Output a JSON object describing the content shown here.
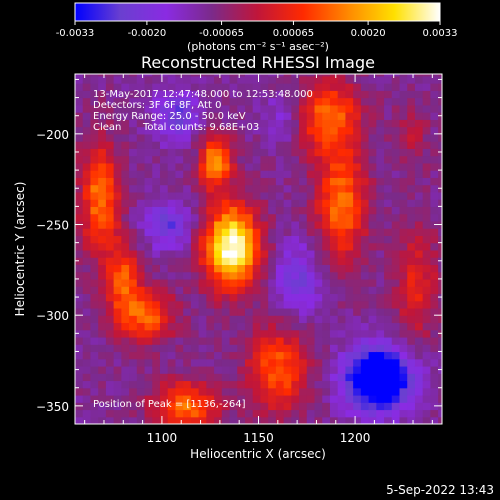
{
  "chart_data": {
    "type": "heatmap",
    "title": "Reconstructed RHESSI Image",
    "xlabel": "Heliocentric X (arcsec)",
    "ylabel": "Heliocentric Y (arcsec)",
    "xlim": [
      1055,
      1245
    ],
    "ylim": [
      -360,
      -167
    ],
    "x_ticks": [
      1100,
      1150,
      1200
    ],
    "y_ticks": [
      -200,
      -250,
      -300,
      -350
    ],
    "colorbar": {
      "min": -0.0033,
      "max": 0.0033,
      "ticks": [
        -0.0033,
        -0.002,
        -0.00065,
        0.00065,
        0.002,
        0.0033
      ],
      "tick_labels": [
        "-0.0033",
        "-0.0020",
        "-0.00065",
        "0.00065",
        "0.0020",
        "0.0033"
      ],
      "unit_label": "(photons cm⁻² s⁻¹ asec⁻²)",
      "colormap": [
        "#0000ff",
        "#6a3fd0",
        "#8a2be2",
        "#7b2a8a",
        "#c0163a",
        "#ff2a00",
        "#ff8a00",
        "#ffe000",
        "#ffffff"
      ]
    },
    "info_lines": [
      "13-May-2017 12:47:48.000 to 12:53:48.000",
      "Detectors: 3F 6F 8F, Att 0",
      "Energy Range: 25.0 - 50.0 keV",
      "Clean",
      "Total counts: 9.68E+03"
    ],
    "peak_label": "Position of Peak = [1136,-264]",
    "peak": [
      1136,
      -264
    ],
    "sources": [
      {
        "x": 1136,
        "y": -262,
        "sx": 10,
        "sy": 16,
        "amp": 1.9
      },
      {
        "x": 1128,
        "y": -215,
        "sx": 6,
        "sy": 10,
        "amp": 1.2
      },
      {
        "x": 1068,
        "y": -235,
        "sx": 7,
        "sy": 22,
        "amp": 1.05
      },
      {
        "x": 1092,
        "y": -300,
        "sx": 10,
        "sy": 10,
        "amp": 0.95
      },
      {
        "x": 1080,
        "y": -280,
        "sx": 6,
        "sy": 14,
        "amp": 0.9
      },
      {
        "x": 1185,
        "y": -190,
        "sx": 12,
        "sy": 14,
        "amp": 1.0
      },
      {
        "x": 1193,
        "y": -238,
        "sx": 9,
        "sy": 22,
        "amp": 1.05
      },
      {
        "x": 1160,
        "y": -330,
        "sx": 11,
        "sy": 16,
        "amp": 0.95
      },
      {
        "x": 1112,
        "y": -350,
        "sx": 12,
        "sy": 10,
        "amp": 1.0
      },
      {
        "x": 1232,
        "y": -282,
        "sx": 8,
        "sy": 22,
        "amp": 0.6
      },
      {
        "x": 1230,
        "y": -200,
        "sx": 6,
        "sy": 12,
        "amp": 0.35
      }
    ],
    "dips": [
      {
        "x": 1212,
        "y": -335,
        "sx": 12,
        "sy": 12,
        "amp": 1.8
      },
      {
        "x": 1103,
        "y": -250,
        "sx": 9,
        "sy": 9,
        "amp": 0.7
      },
      {
        "x": 1108,
        "y": -190,
        "sx": 8,
        "sy": 10,
        "amp": 0.7
      },
      {
        "x": 1170,
        "y": -280,
        "sx": 9,
        "sy": 14,
        "amp": 0.6
      },
      {
        "x": 1165,
        "y": -190,
        "sx": 8,
        "sy": 10,
        "amp": 0.45
      }
    ]
  },
  "footer": {
    "date": "5-Sep-2022 13:43"
  }
}
